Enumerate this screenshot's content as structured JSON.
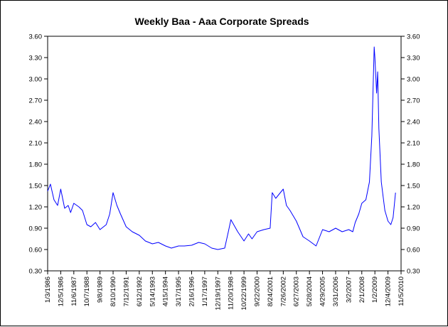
{
  "chart_data": {
    "type": "line",
    "title": "Weekly Baa - Aaa Corporate Spreads",
    "xlabel": "",
    "ylabel": "",
    "ylim": [
      0.3,
      3.6
    ],
    "y_ticks": [
      "0.30",
      "0.60",
      "0.90",
      "1.20",
      "1.50",
      "1.80",
      "2.10",
      "2.40",
      "2.70",
      "3.00",
      "3.30",
      "3.60"
    ],
    "x_ticks": [
      "1/3/1986",
      "12/5/1986",
      "11/6/1987",
      "10/7/1988",
      "9/8/1989",
      "8/10/1990",
      "7/12/1991",
      "6/12/1992",
      "5/14/1993",
      "4/15/1994",
      "3/17/1995",
      "2/16/1996",
      "1/17/1997",
      "12/19/1997",
      "11/20/1998",
      "10/22/1999",
      "9/22/2000",
      "8/24/2001",
      "7/26/2002",
      "6/27/2003",
      "5/28/2004",
      "4/29/2005",
      "3/31/2006",
      "3/2/2007",
      "2/1/2008",
      "1/2/2009",
      "12/4/2009",
      "11/5/2010"
    ],
    "x_range": [
      "1/3/1986",
      "11/5/2010"
    ],
    "grid": false,
    "legend": "none",
    "line_color": "#0000ff",
    "series": [
      {
        "x": [
          "1/3/1986",
          "3/1986",
          "6/1986",
          "9/1986",
          "12/5/1986",
          "3/1987",
          "6/1987",
          "8/1987",
          "11/6/1987",
          "3/1988",
          "6/1988",
          "10/7/1988",
          "1/1989",
          "5/1989",
          "9/8/1989",
          "2/1990",
          "5/1990",
          "8/10/1990",
          "11/1990",
          "2/1991",
          "7/12/1991",
          "12/1991",
          "6/12/1992",
          "11/1992",
          "5/14/1993",
          "10/1993",
          "4/15/1994",
          "9/1994",
          "3/17/1995",
          "8/1995",
          "2/16/1996",
          "8/1996",
          "1/17/1997",
          "7/1997",
          "12/19/1997",
          "6/1998",
          "9/1998",
          "11/20/1998",
          "5/1999",
          "10/22/1999",
          "2/2000",
          "5/2000",
          "9/22/2000",
          "3/2001",
          "8/24/2001",
          "10/2001",
          "1/2002",
          "7/26/2002",
          "10/2002",
          "1/2003",
          "6/27/2003",
          "12/2003",
          "5/28/2004",
          "11/2004",
          "4/29/2005",
          "10/2005",
          "3/31/2006",
          "9/2006",
          "3/2/2007",
          "6/2007",
          "8/2007",
          "11/2007",
          "2/1/2008",
          "5/2008",
          "8/2008",
          "10/2008",
          "12/2008",
          "1/2/2009",
          "2/2009",
          "3/2009",
          "4/2009",
          "6/2009",
          "9/2009",
          "12/4/2009",
          "2/2010",
          "4/2010",
          "6/2010"
        ],
        "y": [
          1.42,
          1.52,
          1.3,
          1.22,
          1.45,
          1.18,
          1.22,
          1.12,
          1.25,
          1.2,
          1.15,
          0.95,
          0.92,
          0.98,
          0.88,
          0.95,
          1.1,
          1.4,
          1.22,
          1.1,
          0.92,
          0.85,
          0.8,
          0.72,
          0.68,
          0.7,
          0.65,
          0.62,
          0.65,
          0.65,
          0.66,
          0.7,
          0.68,
          0.62,
          0.6,
          0.62,
          0.85,
          1.02,
          0.85,
          0.72,
          0.82,
          0.75,
          0.85,
          0.88,
          0.9,
          1.4,
          1.32,
          1.45,
          1.22,
          1.15,
          1.0,
          0.78,
          0.72,
          0.65,
          0.88,
          0.85,
          0.9,
          0.85,
          0.88,
          0.85,
          0.98,
          1.1,
          1.25,
          1.3,
          1.55,
          2.2,
          3.45,
          3.3,
          2.8,
          3.1,
          2.3,
          1.55,
          1.15,
          1.0,
          0.95,
          1.05,
          1.4
        ]
      }
    ]
  }
}
